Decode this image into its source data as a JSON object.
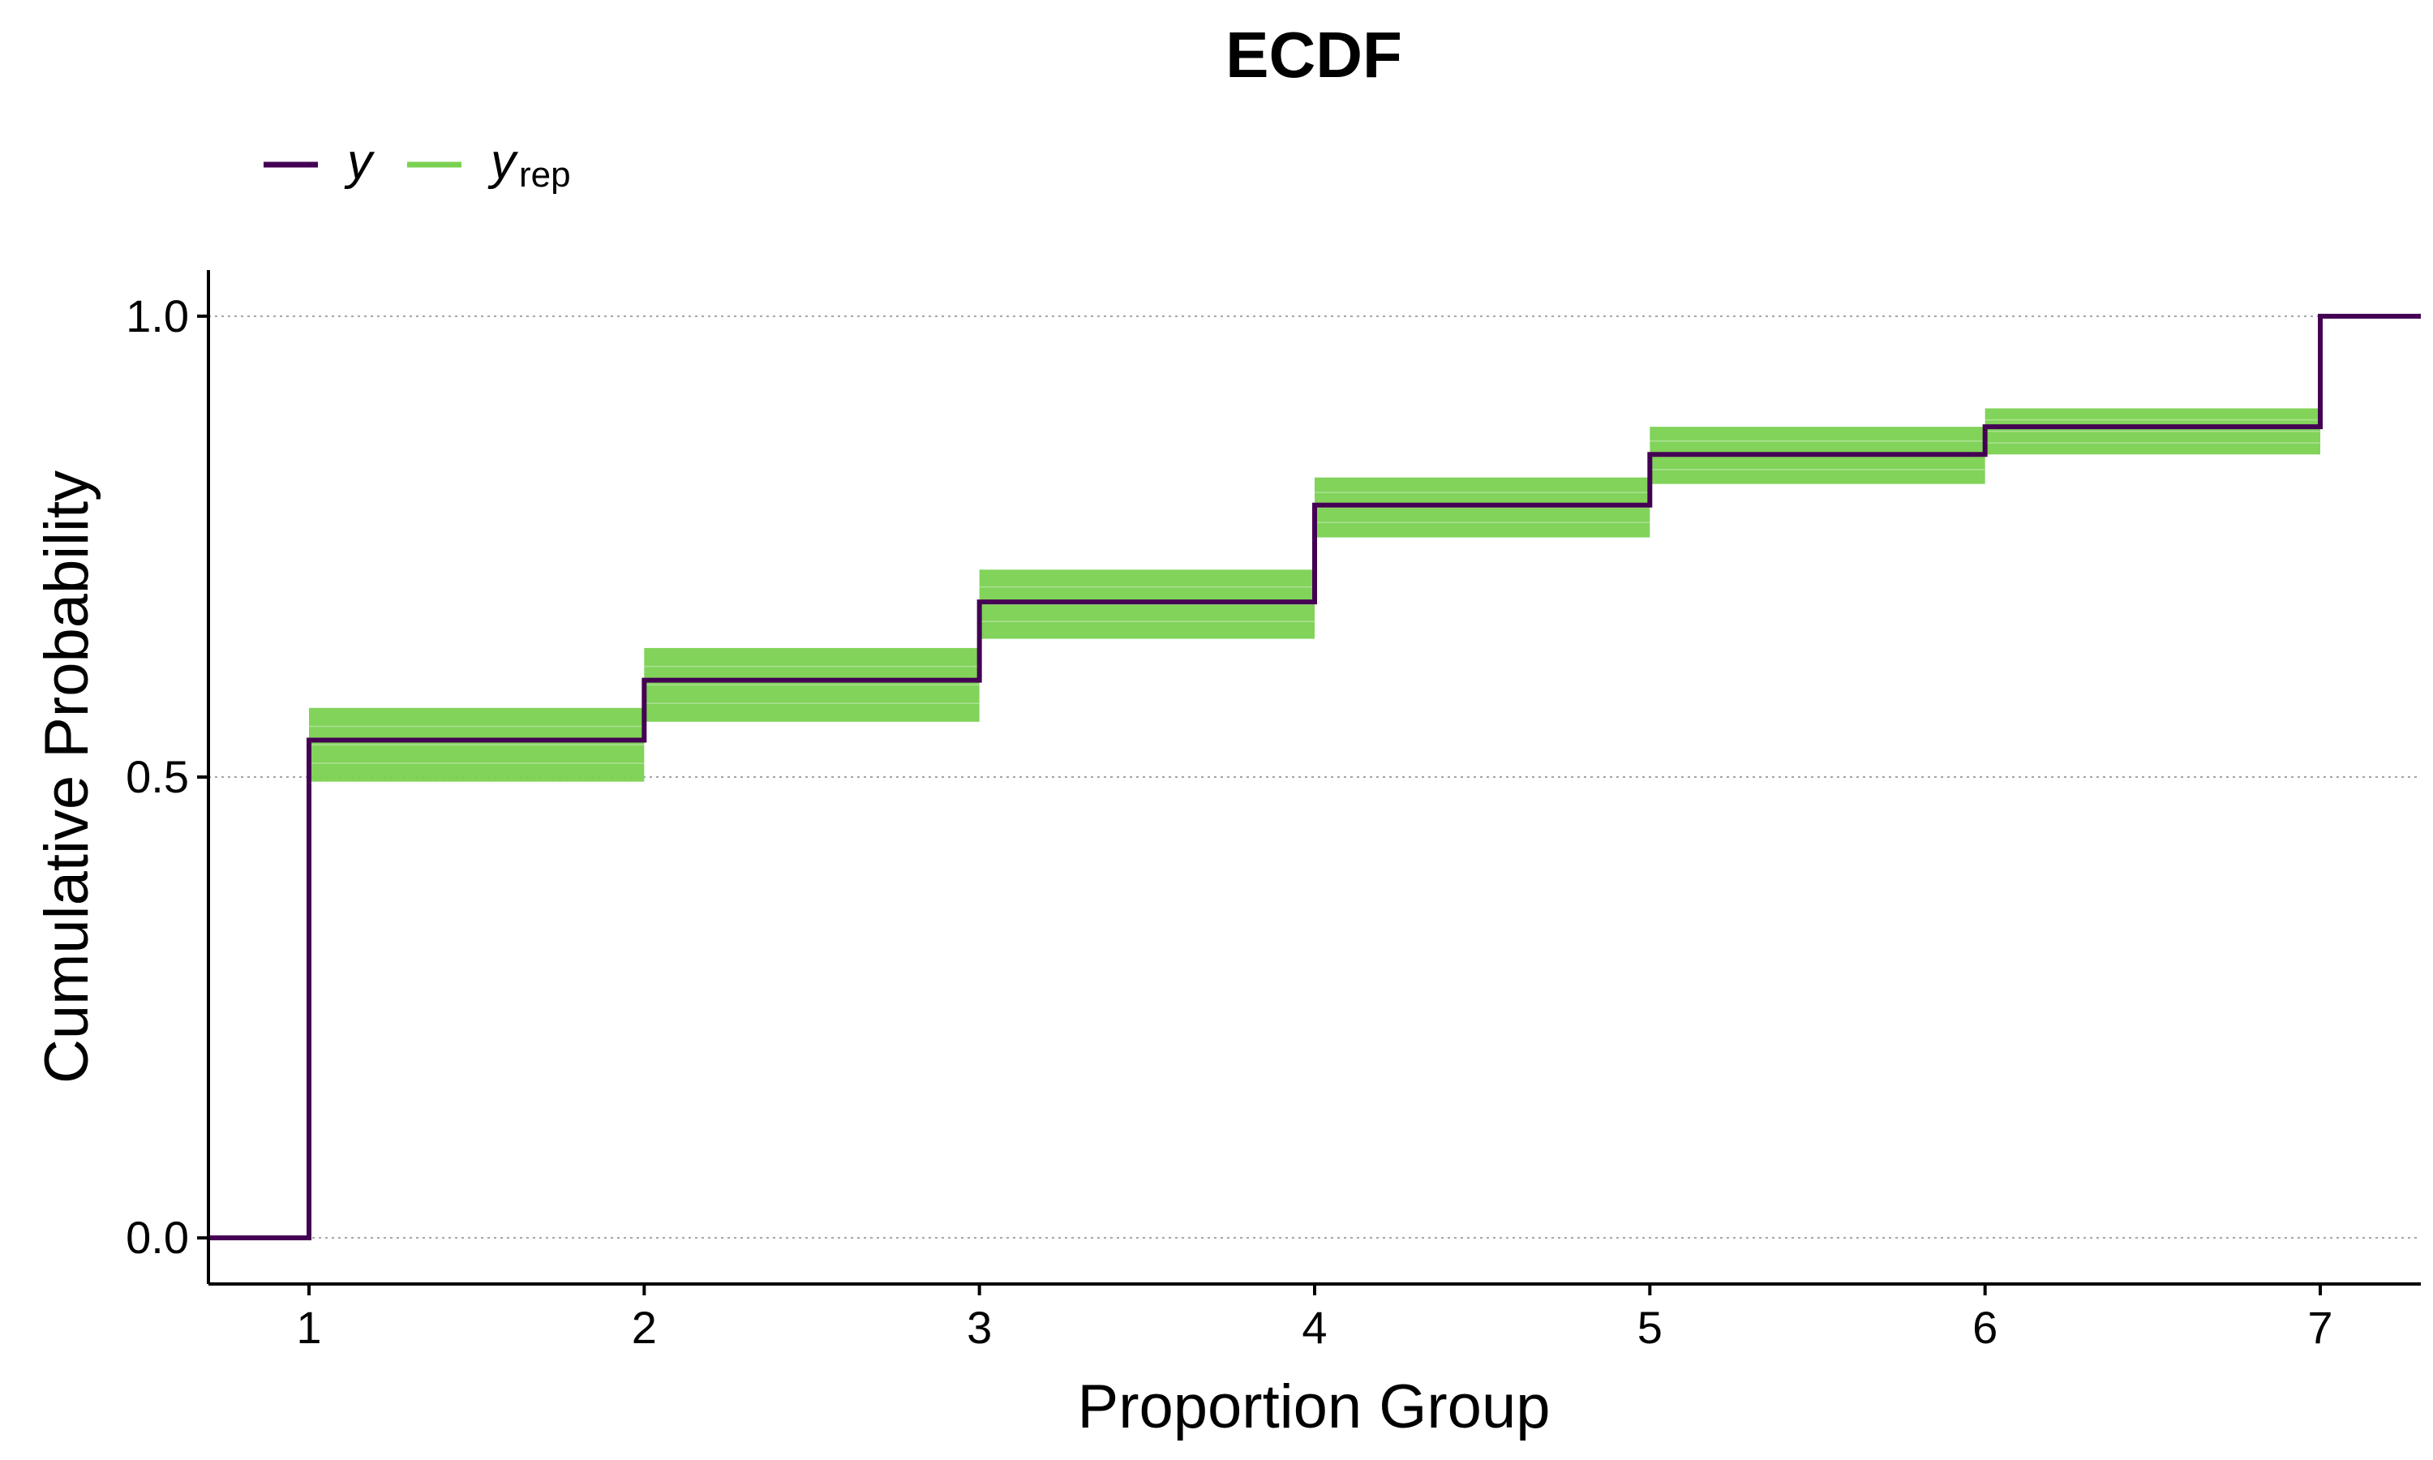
{
  "chart_data": {
    "type": "line",
    "title": "ECDF",
    "xlabel": "Proportion Group",
    "ylabel": "Cumulative Probability",
    "xlim": [
      0.7,
      7.3
    ],
    "ylim": [
      -0.05,
      1.05
    ],
    "x_ticks": [
      "1",
      "2",
      "3",
      "4",
      "5",
      "6",
      "7"
    ],
    "y_ticks": [
      "0.0",
      "0.5",
      "1.0"
    ],
    "y_tick_values": [
      0.0,
      0.5,
      1.0
    ],
    "grid": "horizontal dotted",
    "legend_position": "top-left",
    "legend": [
      {
        "symbol": "y",
        "subscript": "",
        "color": "#440154"
      },
      {
        "symbol": "y",
        "subscript": "rep",
        "color": "#7ad151"
      }
    ],
    "series": [
      {
        "role": "observed",
        "color": "#440154",
        "x": [
          1,
          2,
          3,
          4,
          5,
          6,
          7
        ],
        "values": [
          0.54,
          0.605,
          0.69,
          0.795,
          0.85,
          0.88,
          1.0
        ]
      },
      {
        "role": "replicated",
        "color": "#7ad151",
        "x": [
          1,
          2,
          3,
          4,
          5,
          6
        ],
        "band_low": [
          0.495,
          0.56,
          0.65,
          0.76,
          0.818,
          0.85
        ],
        "band_high": [
          0.575,
          0.64,
          0.725,
          0.825,
          0.88,
          0.9
        ]
      }
    ]
  }
}
